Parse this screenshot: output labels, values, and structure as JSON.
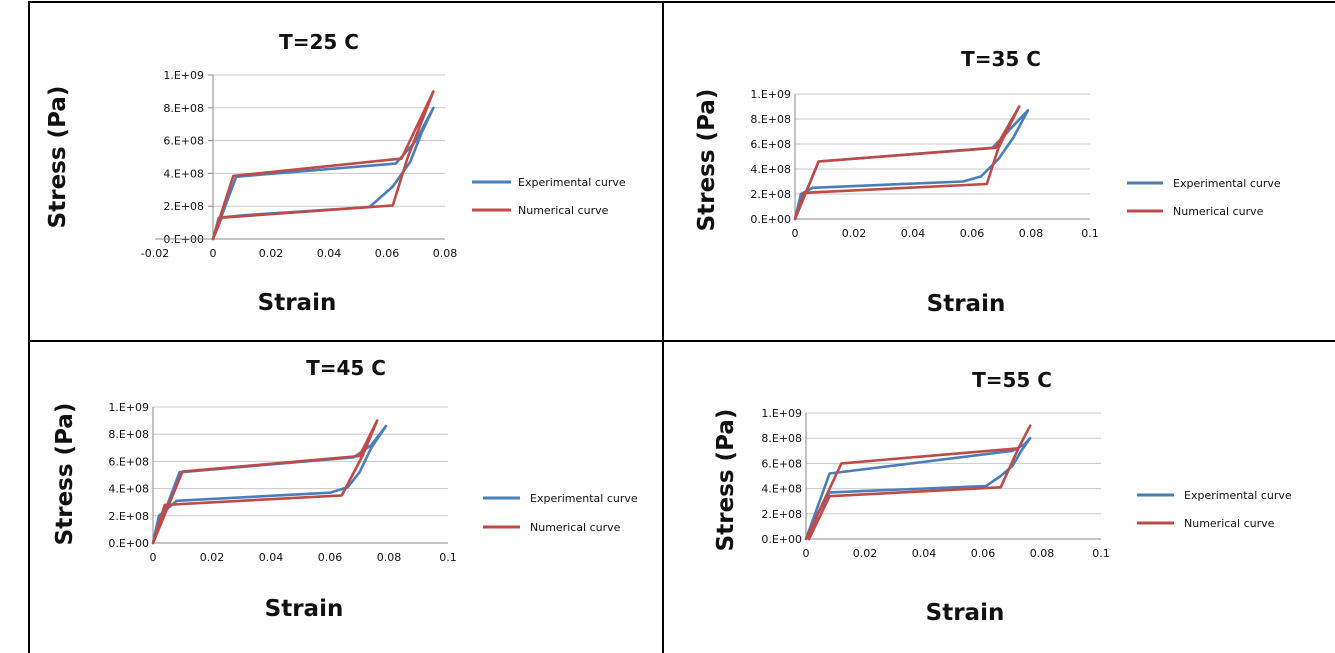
{
  "chart_data": [
    {
      "type": "line",
      "title": "T=25 C",
      "xlabel": "Strain",
      "ylabel": "Stress (Pa)",
      "xlim": [
        -0.02,
        0.08
      ],
      "ylim": [
        0,
        1000000000
      ],
      "x_ticks": [
        -0.02,
        0,
        0.02,
        0.04,
        0.06,
        0.08
      ],
      "x_tick_labels": [
        "-0.02",
        "0",
        "0.02",
        "0.04",
        "0.06",
        "0.08"
      ],
      "y_ticks": [
        0,
        200000000,
        400000000,
        600000000,
        800000000,
        1000000000
      ],
      "y_tick_labels": [
        "0.E+00",
        "2.E+08",
        "4.E+08",
        "6.E+08",
        "8.E+08",
        "1.E+09"
      ],
      "y_ticks_marked": true,
      "grid": true,
      "legend_position": "right",
      "series": [
        {
          "name": "Experimental curve",
          "color": "#4a7ebb",
          "x": [
            0,
            0.008,
            0.063,
            0.07,
            0.076,
            0.072,
            0.068,
            0.062,
            0.054,
            0.011,
            0.002,
            0
          ],
          "y": [
            0,
            380000000,
            460000000,
            600000000,
            800000000,
            650000000,
            470000000,
            320000000,
            195000000,
            145000000,
            130000000,
            0
          ]
        },
        {
          "name": "Numerical curve",
          "color": "#be4b48",
          "x": [
            0,
            0.007,
            0.065,
            0.076,
            0.067,
            0.062,
            0.003,
            0
          ],
          "y": [
            0,
            385000000,
            490000000,
            900000000,
            490000000,
            205000000,
            130000000,
            0
          ]
        }
      ]
    },
    {
      "type": "line",
      "title": "T=35 C",
      "xlabel": "Strain",
      "ylabel": "Stress (Pa)",
      "xlim": [
        0,
        0.1
      ],
      "ylim": [
        0,
        1000000000
      ],
      "x_ticks": [
        0,
        0.02,
        0.04,
        0.06,
        0.08,
        0.1
      ],
      "x_tick_labels": [
        "0",
        "0.02",
        "0.04",
        "0.06",
        "0.08",
        "0.1"
      ],
      "y_ticks": [
        0,
        200000000,
        400000000,
        600000000,
        800000000,
        1000000000
      ],
      "y_tick_labels": [
        "0.E+00",
        "2.E+08",
        "4.E+08",
        "6.E+08",
        "8.E+08",
        "1.E+09"
      ],
      "y_ticks_marked": false,
      "grid": true,
      "legend_position": "right",
      "series": [
        {
          "name": "Experimental curve",
          "color": "#4a7ebb",
          "x": [
            0,
            0.008,
            0.067,
            0.073,
            0.079,
            0.074,
            0.069,
            0.063,
            0.057,
            0.006,
            0.002,
            0
          ],
          "y": [
            0,
            460000000,
            570000000,
            720000000,
            870000000,
            650000000,
            480000000,
            340000000,
            300000000,
            250000000,
            200000000,
            0
          ]
        },
        {
          "name": "Numerical curve",
          "color": "#be4b48",
          "x": [
            0,
            0.008,
            0.068,
            0.076,
            0.069,
            0.065,
            0.003,
            0
          ],
          "y": [
            0,
            460000000,
            570000000,
            900000000,
            570000000,
            280000000,
            210000000,
            0
          ]
        }
      ]
    },
    {
      "type": "line",
      "title": "T=45 C",
      "xlabel": "Strain",
      "ylabel": "Stress (Pa)",
      "xlim": [
        0,
        0.1
      ],
      "ylim": [
        0,
        1000000000
      ],
      "x_ticks": [
        0,
        0.02,
        0.04,
        0.06,
        0.08,
        0.1
      ],
      "x_tick_labels": [
        "0",
        "0.02",
        "0.04",
        "0.06",
        "0.08",
        "0.1"
      ],
      "y_ticks": [
        0,
        200000000,
        400000000,
        600000000,
        800000000,
        1000000000
      ],
      "y_tick_labels": [
        "0.E+00",
        "2.E+08",
        "4.E+08",
        "6.E+08",
        "8.E+08",
        "1.E+09"
      ],
      "y_ticks_marked": false,
      "grid": true,
      "legend_position": "right",
      "series": [
        {
          "name": "Experimental curve",
          "color": "#4a7ebb",
          "x": [
            0,
            0.009,
            0.068,
            0.074,
            0.079,
            0.074,
            0.07,
            0.066,
            0.06,
            0.008,
            0.002,
            0
          ],
          "y": [
            0,
            520000000,
            630000000,
            720000000,
            860000000,
            700000000,
            520000000,
            410000000,
            370000000,
            310000000,
            200000000,
            0
          ]
        },
        {
          "name": "Numerical curve",
          "color": "#be4b48",
          "x": [
            0,
            0.01,
            0.07,
            0.076,
            0.071,
            0.064,
            0.004,
            0
          ],
          "y": [
            0,
            525000000,
            640000000,
            900000000,
            640000000,
            350000000,
            280000000,
            0
          ]
        }
      ]
    },
    {
      "type": "line",
      "title": "T=55 C",
      "xlabel": "Strain",
      "ylabel": "Stress (Pa)",
      "xlim": [
        0,
        0.1
      ],
      "ylim": [
        0,
        1000000000
      ],
      "x_ticks": [
        0,
        0.02,
        0.04,
        0.06,
        0.08,
        0.1
      ],
      "x_tick_labels": [
        "0",
        "0.02",
        "0.04",
        "0.06",
        "0.08",
        "0.1"
      ],
      "y_ticks": [
        0,
        200000000,
        400000000,
        600000000,
        800000000,
        1000000000
      ],
      "y_tick_labels": [
        "0.E+00",
        "2.E+08",
        "4.E+08",
        "6.E+08",
        "8.E+08",
        "1.E+09"
      ],
      "y_ticks_marked": false,
      "grid": true,
      "legend_position": "right",
      "series": [
        {
          "name": "Experimental curve",
          "color": "#4a7ebb",
          "x": [
            0,
            0.008,
            0.07,
            0.074,
            0.076,
            0.073,
            0.07,
            0.066,
            0.061,
            0.008,
            0.004,
            0.001
          ],
          "y": [
            0,
            520000000,
            700000000,
            750000000,
            800000000,
            700000000,
            580000000,
            500000000,
            420000000,
            370000000,
            200000000,
            0
          ]
        },
        {
          "name": "Numerical curve",
          "color": "#be4b48",
          "x": [
            0,
            0.012,
            0.072,
            0.076,
            0.072,
            0.066,
            0.008,
            0.001
          ],
          "y": [
            0,
            600000000,
            720000000,
            900000000,
            720000000,
            410000000,
            340000000,
            0
          ]
        }
      ]
    }
  ]
}
